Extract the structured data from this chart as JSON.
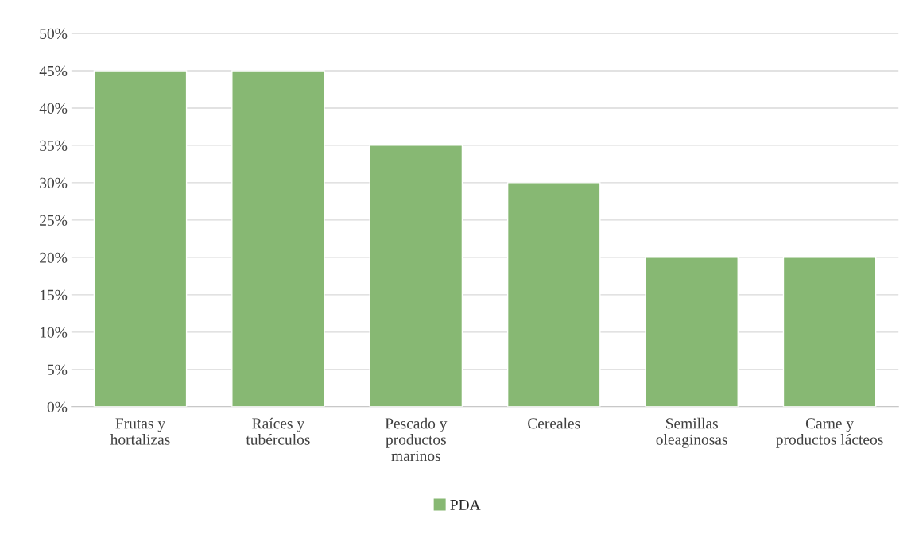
{
  "chart_data": {
    "type": "bar",
    "categories": [
      "Frutas y\nhortalizas",
      "Raíces y\ntubérculos",
      "Pescado y\nproductos\nmarinos",
      "Cereales",
      "Semillas\noleaginosas",
      "Carne y\nproductos lácteos"
    ],
    "series": [
      {
        "name": "PDA",
        "color": "#87b873",
        "values": [
          45,
          45,
          35,
          30,
          20,
          20
        ]
      }
    ],
    "ylim": [
      0,
      50
    ],
    "yticks": [
      {
        "value": 0,
        "label": "0%"
      },
      {
        "value": 5,
        "label": "5%"
      },
      {
        "value": 10,
        "label": "10%"
      },
      {
        "value": 15,
        "label": "15%"
      },
      {
        "value": 20,
        "label": "20%"
      },
      {
        "value": 25,
        "label": "25%"
      },
      {
        "value": 30,
        "label": "30%"
      },
      {
        "value": 35,
        "label": "35%"
      },
      {
        "value": 40,
        "label": "40%"
      },
      {
        "value": 45,
        "label": "45%"
      },
      {
        "value": 50,
        "label": "50%"
      }
    ],
    "grid": "y",
    "legend": "bottom"
  }
}
